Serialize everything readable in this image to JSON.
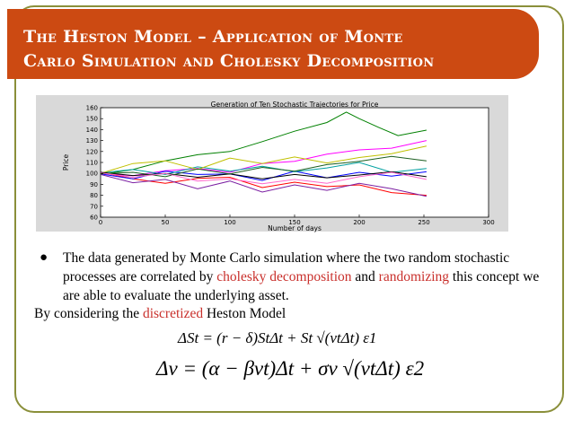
{
  "slide": {
    "title_line1": "The Heston Model – Application of Monte",
    "title_line2": "Carlo Simulation and Cholesky Decomposition",
    "bullet": {
      "part1": "The data generated by Monte Carlo simulation where the two random stochastic processes are correlated by ",
      "highlight1": "cholesky decomposition",
      "part2": " and ",
      "highlight2": "randomizing",
      "part3": " this concept we are able to evaluate the underlying asset."
    },
    "by_line": {
      "part1": "By considering the ",
      "highlight": "discretized",
      "part2": " Heston Model"
    },
    "equation1": "ΔSt = (r − δ)StΔt + St √(vtΔt) ε1",
    "equation2": "Δv = (α − βvt)Δt + σv √(vtΔt) ε2",
    "colors": {
      "title_bg": "#cc4a12",
      "highlight": "#c9302c",
      "frame": "#8a8f3a"
    }
  },
  "chart_data": {
    "type": "line",
    "title": "Generation of Ten Stochastic Trajectories for Price",
    "xlabel": "Number of days",
    "ylabel": "Price",
    "xlim": [
      0,
      300
    ],
    "ylim": [
      60,
      160
    ],
    "xticks": [
      0,
      50,
      100,
      150,
      200,
      250,
      300
    ],
    "yticks": [
      60,
      70,
      80,
      90,
      100,
      110,
      120,
      130,
      140,
      150,
      160
    ],
    "series": [
      {
        "color": "#008000",
        "x": [
          0,
          25,
          50,
          75,
          100,
          125,
          150,
          175,
          190,
          200,
          215,
          230,
          252
        ],
        "y": [
          100,
          104,
          112,
          118,
          120,
          128,
          138,
          146,
          155,
          150,
          143,
          135,
          140
        ]
      },
      {
        "color": "#ff00ff",
        "x": [
          0,
          25,
          50,
          75,
          100,
          125,
          150,
          175,
          200,
          225,
          252
        ],
        "y": [
          100,
          97,
          102,
          104,
          100,
          109,
          112,
          118,
          122,
          124,
          130
        ]
      },
      {
        "color": "#ff0000",
        "x": [
          0,
          25,
          50,
          75,
          100,
          125,
          150,
          175,
          200,
          225,
          252
        ],
        "y": [
          100,
          95,
          92,
          96,
          97,
          88,
          92,
          87,
          89,
          82,
          79
        ]
      },
      {
        "color": "#0000ff",
        "x": [
          0,
          25,
          50,
          75,
          100,
          125,
          150,
          175,
          200,
          225,
          252
        ],
        "y": [
          100,
          96,
          102,
          98,
          99,
          93,
          101,
          96,
          102,
          98,
          102
        ]
      },
      {
        "color": "#00a0a0",
        "x": [
          0,
          25,
          50,
          75,
          100,
          125,
          150,
          175,
          200,
          225,
          252
        ],
        "y": [
          100,
          103,
          98,
          106,
          103,
          107,
          102,
          106,
          110,
          100,
          104
        ]
      },
      {
        "color": "#7b1fa2",
        "x": [
          0,
          25,
          50,
          75,
          100,
          125,
          150,
          175,
          200,
          225,
          252
        ],
        "y": [
          100,
          92,
          95,
          87,
          93,
          82,
          89,
          84,
          90,
          86,
          80
        ]
      },
      {
        "color": "#c0c000",
        "x": [
          0,
          25,
          50,
          75,
          100,
          125,
          150,
          175,
          200,
          225,
          252
        ],
        "y": [
          100,
          108,
          111,
          103,
          113,
          109,
          116,
          110,
          115,
          119,
          125
        ]
      },
      {
        "color": "#000000",
        "x": [
          0,
          25,
          50,
          75,
          100,
          125,
          150,
          175,
          200,
          225,
          252
        ],
        "y": [
          100,
          98,
          101,
          97,
          100,
          96,
          99,
          95,
          98,
          101,
          96
        ]
      },
      {
        "color": "#1b5e20",
        "x": [
          0,
          25,
          50,
          75,
          100,
          125,
          150,
          175,
          200,
          225,
          252
        ],
        "y": [
          100,
          102,
          97,
          103,
          99,
          105,
          101,
          108,
          112,
          116,
          112
        ]
      },
      {
        "color": "#ff66cc",
        "x": [
          0,
          25,
          50,
          75,
          100,
          125,
          150,
          175,
          200,
          225,
          252
        ],
        "y": [
          100,
          96,
          99,
          93,
          96,
          91,
          95,
          92,
          97,
          100,
          94
        ]
      }
    ]
  }
}
